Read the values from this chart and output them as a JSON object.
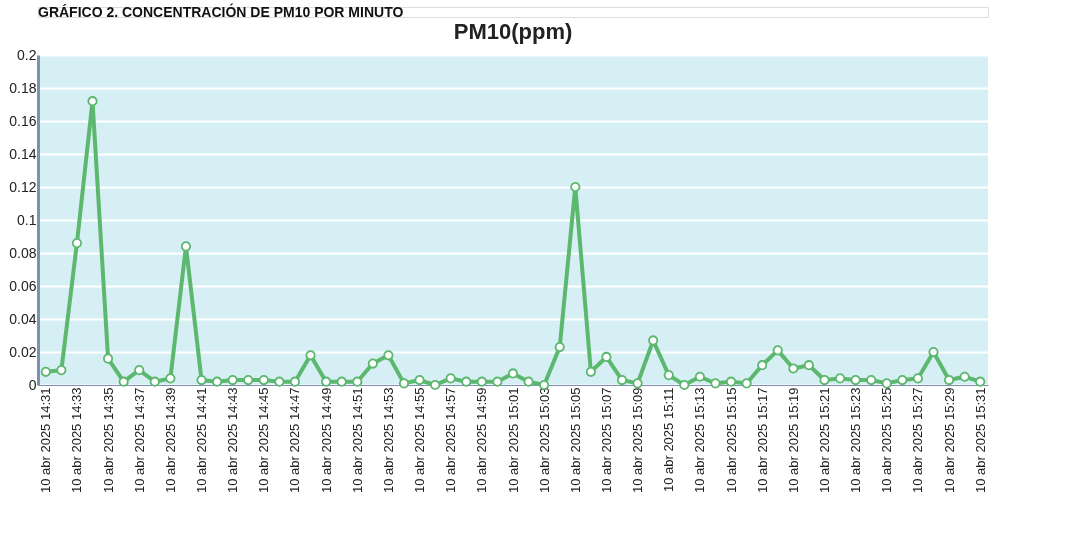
{
  "chart_data": {
    "type": "line",
    "title": "PM10(ppm)",
    "annotations": [
      "GRÁFICO 2. CONCENTRACIÓN DE PM10 POR MINUTO"
    ],
    "categories": [
      "10 abr 2025 14:31",
      null,
      "10 abr 2025 14:33",
      null,
      "10 abr 2025 14:35",
      null,
      "10 abr 2025 14:37",
      null,
      "10 abr 2025 14:39",
      null,
      "10 abr 2025 14:41",
      null,
      "10 abr 2025 14:43",
      null,
      "10 abr 2025 14:45",
      null,
      "10 abr 2025 14:47",
      null,
      "10 abr 2025 14:49",
      null,
      "10 abr 2025 14:51",
      null,
      "10 abr 2025 14:53",
      null,
      "10 abr 2025 14:55",
      null,
      "10 abr 2025 14:57",
      null,
      "10 abr 2025 14:59",
      null,
      "10 abr 2025 15:01",
      null,
      "10 abr 2025 15:03",
      null,
      "10 abr 2025 15:05",
      null,
      "10 abr 2025 15:07",
      null,
      "10 abr 2025 15:09",
      null,
      "10 abr 2025 15:11",
      null,
      "10 abr 2025 15:13",
      null,
      "10 abr 2025 15:15",
      null,
      "10 abr 2025 15:17",
      null,
      "10 abr 2025 15:19",
      null,
      "10 abr 2025 15:21",
      null,
      "10 abr 2025 15:23",
      null,
      "10 abr 2025 15:25",
      null,
      "10 abr 2025 15:27",
      null,
      "10 abr 2025 15:29",
      null,
      "10 abr 2025 15:31"
    ],
    "series": [
      {
        "color": "#5cb86e",
        "values": [
          0.008,
          0.009,
          0.086,
          0.172,
          0.016,
          0.002,
          0.009,
          0.002,
          0.004,
          0.084,
          0.003,
          0.002,
          0.003,
          0.003,
          0.003,
          0.002,
          0.002,
          0.018,
          0.002,
          0.002,
          0.002,
          0.013,
          0.018,
          0.001,
          0.003,
          0.0,
          0.004,
          0.002,
          0.002,
          0.002,
          0.007,
          0.002,
          0.0,
          0.023,
          0.12,
          0.008,
          0.017,
          0.003,
          0.001,
          0.027,
          0.006,
          0.0,
          0.005,
          0.001,
          0.002,
          0.001,
          0.012,
          0.021,
          0.01,
          0.012,
          0.003,
          0.004,
          0.003,
          0.003,
          0.001,
          0.003,
          0.004,
          0.02,
          0.003,
          0.005,
          0.002
        ]
      }
    ],
    "ylim": [
      0,
      0.2
    ],
    "yticks": [
      0,
      0.02,
      0.04,
      0.06,
      0.08,
      0.1,
      0.12,
      0.14,
      0.16,
      0.18,
      0.2
    ],
    "grid": "y",
    "marker": "circle",
    "line_style": "solid",
    "legend": false
  }
}
